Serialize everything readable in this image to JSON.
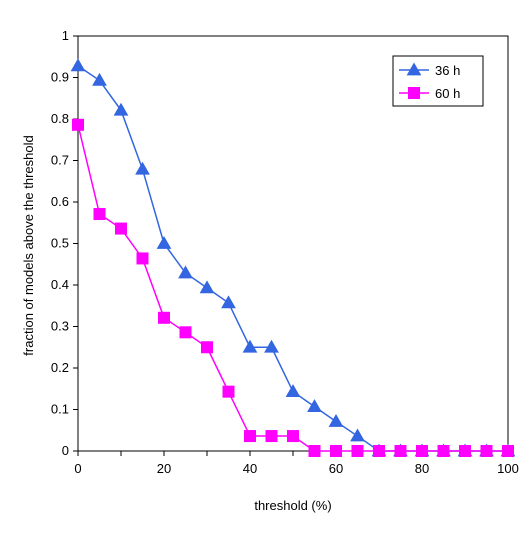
{
  "chart_data": {
    "type": "line",
    "title": "",
    "xlabel": "threshold (%)",
    "ylabel": "fraction of models above the threshold",
    "xlim": [
      0,
      100
    ],
    "ylim": [
      0,
      1
    ],
    "x_ticks": [
      "0",
      "20",
      "40",
      "60",
      "80",
      "100"
    ],
    "y_ticks": [
      "0",
      "0.1",
      "0.2",
      "0.3",
      "0.4",
      "0.5",
      "0.6",
      "0.7",
      "0.8",
      "0.9",
      "1"
    ],
    "x": [
      0,
      5,
      10,
      15,
      20,
      25,
      30,
      35,
      40,
      45,
      50,
      55,
      60,
      65,
      70,
      75,
      80,
      85,
      90,
      95,
      100
    ],
    "grid": false,
    "legend_position": "top-right",
    "series": [
      {
        "name": "36 h",
        "color": "#3366e0",
        "marker": "triangle",
        "values": [
          0.928,
          0.893,
          0.821,
          0.679,
          0.5,
          0.429,
          0.393,
          0.357,
          0.25,
          0.25,
          0.143,
          0.107,
          0.071,
          0.036,
          0,
          0,
          0,
          0,
          0,
          0,
          0
        ]
      },
      {
        "name": "60 h",
        "color": "#ff00ff",
        "marker": "square",
        "values": [
          0.786,
          0.571,
          0.536,
          0.464,
          0.321,
          0.286,
          0.25,
          0.143,
          0.036,
          0.036,
          0.036,
          0,
          0,
          0,
          0,
          0,
          0,
          0,
          0,
          0,
          0
        ]
      }
    ]
  }
}
